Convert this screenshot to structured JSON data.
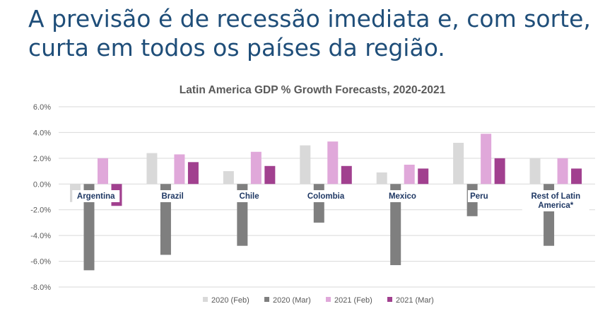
{
  "slide": {
    "title_line1": "A previsão é de recessão imediata e, com sorte,",
    "title_line2": "curta em todos os países da região."
  },
  "chart_data": {
    "type": "bar",
    "title": "Latin America GDP % Growth Forecasts, 2020-2021",
    "categories": [
      [
        "Argentina"
      ],
      [
        "Brazil"
      ],
      [
        "Chile"
      ],
      [
        "Colombia"
      ],
      [
        "Mexico"
      ],
      [
        "Peru"
      ],
      [
        "Rest of Latin",
        "America*"
      ]
    ],
    "series": [
      {
        "name": "2020 (Feb)",
        "color": "#d9d9d9",
        "values": [
          -1.4,
          2.4,
          1.0,
          3.0,
          0.9,
          3.2,
          2.0
        ]
      },
      {
        "name": "2020 (Mar)",
        "color": "#7f7f7f",
        "values": [
          -6.7,
          -5.5,
          -4.8,
          -3.0,
          -6.3,
          -2.5,
          -4.8
        ]
      },
      {
        "name": "2021 (Feb)",
        "color": "#e0a8da",
        "values": [
          2.0,
          2.3,
          2.5,
          3.3,
          1.5,
          3.9,
          2.0
        ]
      },
      {
        "name": "2021 (Mar)",
        "color": "#a1408f",
        "values": [
          -1.7,
          1.7,
          1.4,
          1.4,
          1.2,
          2.0,
          1.2
        ]
      }
    ],
    "yticks": [
      "6.0%",
      "4.0%",
      "2.0%",
      "0.0%",
      "-2.0%",
      "-4.0%",
      "-6.0%",
      "-8.0%"
    ],
    "ylim": [
      -8,
      6
    ],
    "grid": true,
    "legend": "bottom"
  }
}
